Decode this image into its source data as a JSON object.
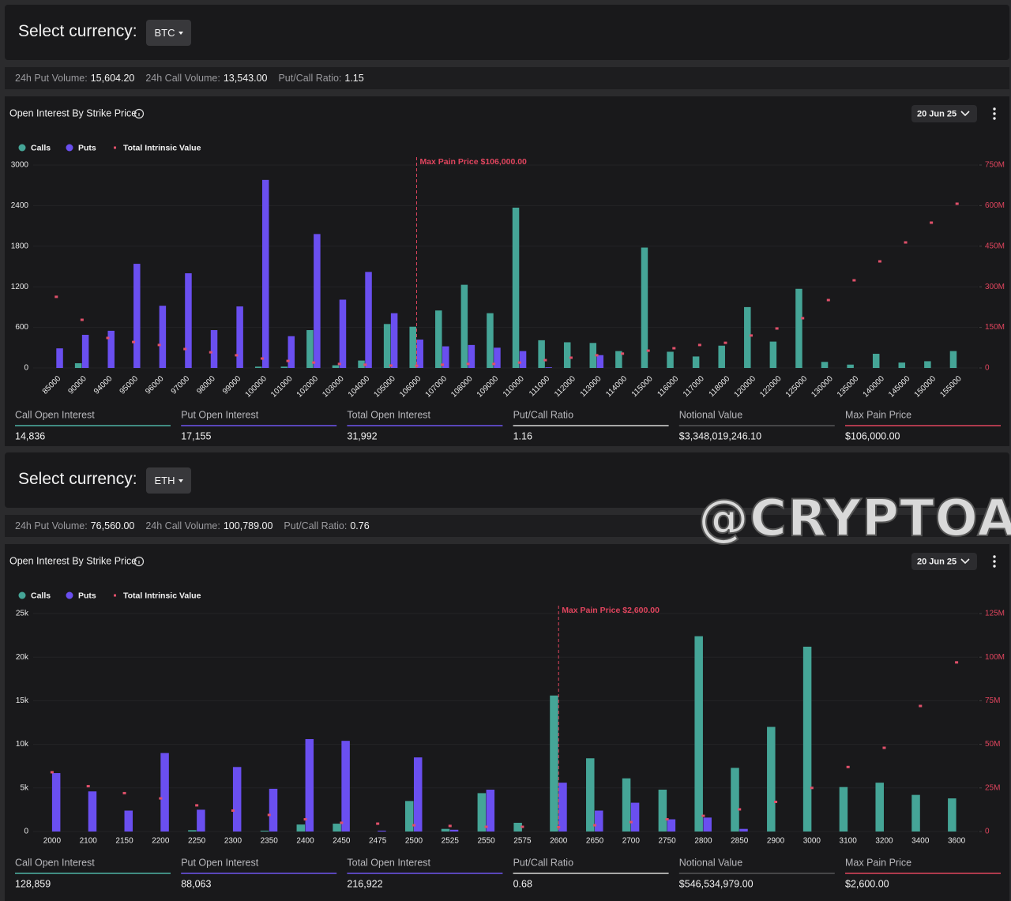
{
  "panels": [
    {
      "currency_label": "Select currency:",
      "currency": "BTC",
      "expiry": "20 Jun 25",
      "volumes": [
        {
          "label": "24h Put Volume:",
          "value": "15,604.20"
        },
        {
          "label": "24h Call Volume:",
          "value": "13,543.00"
        },
        {
          "label": "Put/Call Ratio:",
          "value": "1.15"
        }
      ],
      "stats": [
        {
          "label": "Call Open Interest",
          "value": "14,836",
          "color": "#4fb3a4"
        },
        {
          "label": "Put Open Interest",
          "value": "17,155",
          "color": "#6f55f0"
        },
        {
          "label": "Total Open Interest",
          "value": "31,992",
          "color": "#6f55f0"
        },
        {
          "label": "Put/Call Ratio",
          "value": "1.16",
          "color": "#d8d8d8"
        },
        {
          "label": "Notional Value",
          "value": "$3,348,019,246.10",
          "color": "#555558"
        },
        {
          "label": "Max Pain Price",
          "value": "$106,000.00",
          "color": "#e0455e"
        }
      ]
    },
    {
      "currency_label": "Select currency:",
      "currency": "ETH",
      "expiry": "20 Jun 25",
      "volumes": [
        {
          "label": "24h Put Volume:",
          "value": "76,560.00"
        },
        {
          "label": "24h Call Volume:",
          "value": "100,789.00"
        },
        {
          "label": "Put/Call Ratio:",
          "value": "0.76"
        }
      ],
      "stats": [
        {
          "label": "Call Open Interest",
          "value": "128,859",
          "color": "#4fb3a4"
        },
        {
          "label": "Put Open Interest",
          "value": "88,063",
          "color": "#6f55f0"
        },
        {
          "label": "Total Open Interest",
          "value": "216,922",
          "color": "#6f55f0"
        },
        {
          "label": "Put/Call Ratio",
          "value": "0.68",
          "color": "#d8d8d8"
        },
        {
          "label": "Notional Value",
          "value": "$546,534,979.00",
          "color": "#555558"
        },
        {
          "label": "Max Pain Price",
          "value": "$2,600.00",
          "color": "#e0455e"
        }
      ]
    }
  ],
  "watermark": "@CRYPTOATTACK",
  "chart_data": [
    {
      "type": "bar",
      "title": "Open Interest By Strike Price",
      "categories": [
        "85000",
        "90000",
        "94000",
        "95000",
        "96000",
        "97000",
        "98000",
        "99000",
        "100000",
        "101000",
        "102000",
        "103000",
        "104000",
        "105000",
        "106000",
        "107000",
        "108000",
        "109000",
        "110000",
        "111000",
        "112000",
        "113000",
        "114000",
        "115000",
        "116000",
        "117000",
        "118000",
        "120000",
        "122000",
        "125000",
        "130000",
        "135000",
        "140000",
        "145000",
        "150000",
        "155000"
      ],
      "series": [
        {
          "name": "Calls",
          "color": "#45a597",
          "values": [
            0,
            70,
            0,
            0,
            0,
            0,
            0,
            0,
            20,
            20,
            560,
            40,
            110,
            650,
            610,
            850,
            1230,
            810,
            2370,
            410,
            380,
            370,
            250,
            1780,
            240,
            170,
            330,
            900,
            390,
            1170,
            90,
            50,
            210,
            80,
            100,
            250
          ]
        },
        {
          "name": "Puts",
          "color": "#6a4ff0",
          "values": [
            290,
            490,
            550,
            1540,
            920,
            1400,
            560,
            910,
            2780,
            470,
            1980,
            1010,
            1420,
            810,
            420,
            320,
            340,
            300,
            250,
            10,
            0,
            190,
            0,
            0,
            0,
            0,
            0,
            0,
            0,
            0,
            0,
            0,
            0,
            0,
            0,
            0
          ]
        },
        {
          "name": "Total Intrinsic Value",
          "color": "#e0506a",
          "type": "scatter",
          "axis": "y2",
          "values": [
            263,
            178,
            111,
            96,
            85,
            70,
            58,
            47,
            35,
            26,
            20,
            15,
            12,
            9,
            8,
            12,
            15,
            15,
            20,
            29,
            38,
            47,
            53,
            64,
            73,
            85,
            93,
            120,
            146,
            184,
            251,
            324,
            394,
            464,
            537,
            607
          ]
        }
      ],
      "ylim": [
        0,
        3000
      ],
      "yticks": [
        0,
        600,
        1200,
        1800,
        2400,
        3000
      ],
      "y2lim": [
        0,
        750
      ],
      "y2ticks": [
        0,
        {
          "value": 150,
          "label": "150M"
        },
        {
          "value": 300,
          "label": "300M"
        },
        {
          "value": 450,
          "label": "450M"
        },
        {
          "value": 600,
          "label": "600M"
        },
        {
          "value": 750,
          "label": "750M"
        }
      ],
      "grid": true,
      "annotations": [
        {
          "text": "Max Pain Price $106,000.00",
          "x": "106000",
          "color": "#e0455e"
        }
      ]
    },
    {
      "type": "bar",
      "title": "Open Interest By Strike Price",
      "categories": [
        "2000",
        "2100",
        "2150",
        "2200",
        "2250",
        "2300",
        "2350",
        "2400",
        "2450",
        "2475",
        "2500",
        "2525",
        "2550",
        "2575",
        "2600",
        "2650",
        "2700",
        "2750",
        "2800",
        "2850",
        "2900",
        "3000",
        "3100",
        "3200",
        "3400",
        "3600"
      ],
      "series": [
        {
          "name": "Calls",
          "color": "#45a597",
          "values": [
            0,
            0,
            0,
            0,
            150,
            0,
            100,
            800,
            900,
            0,
            3500,
            300,
            4400,
            1000,
            15600,
            8400,
            6100,
            4800,
            22400,
            7300,
            12000,
            21200,
            5100,
            5600,
            4200,
            3800
          ]
        },
        {
          "name": "Puts",
          "color": "#6a4ff0",
          "values": [
            6700,
            4600,
            2400,
            9000,
            2500,
            7400,
            4900,
            10600,
            10400,
            100,
            8500,
            200,
            4800,
            0,
            5600,
            2400,
            3300,
            1400,
            1600,
            300,
            0,
            0,
            0,
            0,
            0,
            0
          ]
        },
        {
          "name": "Total Intrinsic Value",
          "color": "#e0506a",
          "type": "scatter",
          "axis": "y2",
          "values": [
            34,
            26,
            22,
            19,
            15,
            12,
            9.5,
            7,
            5,
            4.5,
            3.6,
            3.2,
            2.7,
            2.7,
            2.5,
            3.6,
            5.4,
            7,
            9,
            12.7,
            17,
            25,
            37,
            48,
            72,
            97
          ]
        }
      ],
      "ylim": [
        0,
        25000
      ],
      "yticks": [
        0,
        {
          "value": 5000,
          "label": "5k"
        },
        {
          "value": 10000,
          "label": "10k"
        },
        {
          "value": 15000,
          "label": "15k"
        },
        {
          "value": 20000,
          "label": "20k"
        },
        {
          "value": 25000,
          "label": "25k"
        }
      ],
      "y2lim": [
        0,
        125
      ],
      "y2ticks": [
        0,
        {
          "value": 25,
          "label": "25M"
        },
        {
          "value": 50,
          "label": "50M"
        },
        {
          "value": 75,
          "label": "75M"
        },
        {
          "value": 100,
          "label": "100M"
        },
        {
          "value": 125,
          "label": "125M"
        }
      ],
      "grid": true,
      "annotations": [
        {
          "text": "Max Pain Price $2,600.00",
          "x": "2600",
          "color": "#e0455e"
        }
      ]
    }
  ]
}
